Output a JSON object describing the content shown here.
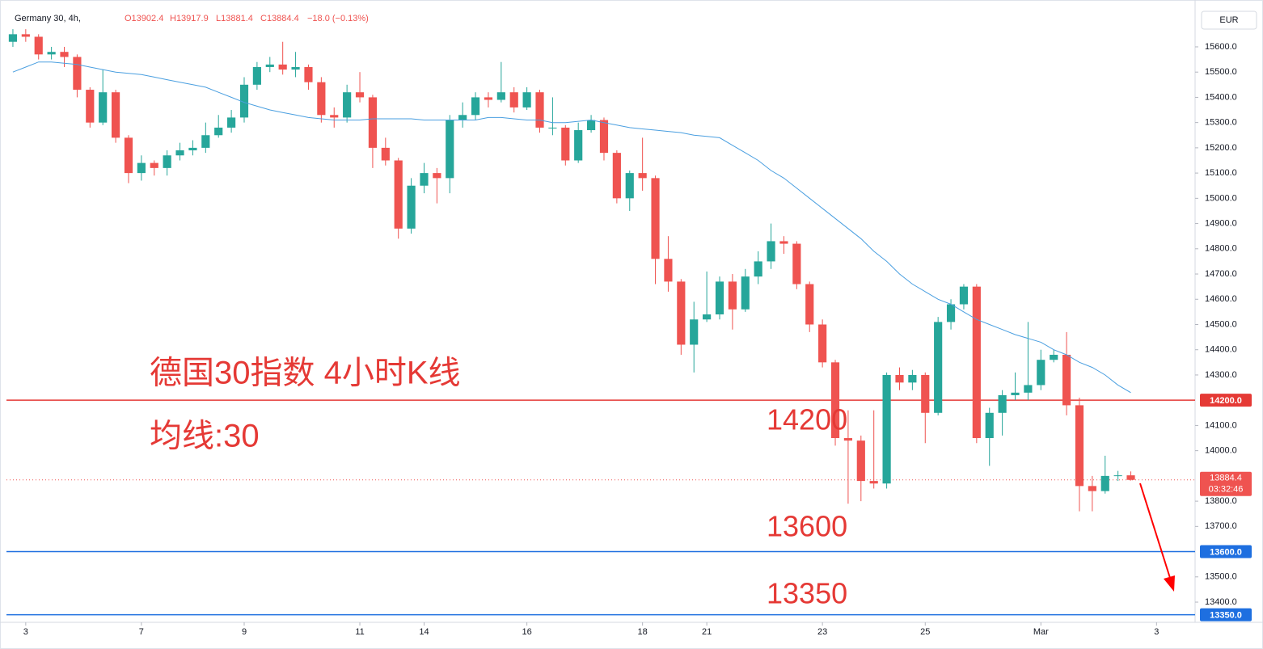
{
  "chart_data": {
    "type": "candlestick",
    "legend": {
      "symbol": "Germany 30, 4h,",
      "open": "O13902.4",
      "high": "H13917.9",
      "low": "L13881.4",
      "close": "C13884.4",
      "change": "−18.0 (−0.13%)"
    },
    "currency": "EUR",
    "annotations": [
      "德国30指数 4小时K线",
      "均线:30",
      "14200",
      "13600",
      "13350"
    ],
    "up_color": "#26a69a",
    "down_color": "#ef5350",
    "ma_color": "#4a9fe0",
    "open": [
      15620,
      15650,
      15640,
      15570,
      15580,
      15560,
      15430,
      15300,
      15420,
      15240,
      15100,
      15140,
      15120,
      15170,
      15190,
      15200,
      15250,
      15280,
      15320,
      15450,
      15520,
      15530,
      15510,
      15520,
      15460,
      15330,
      15320,
      15420,
      15400,
      15200,
      15150,
      14880,
      15050,
      15100,
      15080,
      15310,
      15330,
      15400,
      15390,
      15420,
      15360,
      15420,
      15280,
      15280,
      15150,
      15270,
      15310,
      15180,
      15000,
      15100,
      15080,
      14760,
      14670,
      14420,
      14520,
      14540,
      14670,
      14560,
      14690,
      14750,
      14830,
      14820,
      14660,
      14500,
      14350,
      14050,
      14040,
      13880,
      13870,
      14300,
      14270,
      14300,
      14150,
      14510,
      14580,
      14650,
      14050,
      14150,
      14220,
      14230,
      14260,
      14360,
      14380,
      14180,
      13860,
      13840,
      13900,
      13902.4
    ],
    "high": [
      15670,
      15670,
      15650,
      15600,
      15600,
      15570,
      15440,
      15510,
      15430,
      15250,
      15170,
      15150,
      15190,
      15220,
      15230,
      15300,
      15330,
      15350,
      15480,
      15540,
      15560,
      15620,
      15580,
      15530,
      15480,
      15360,
      15450,
      15500,
      15410,
      15240,
      15160,
      15080,
      15140,
      15120,
      15330,
      15380,
      15420,
      15420,
      15540,
      15440,
      15440,
      15430,
      15400,
      15290,
      15300,
      15330,
      15320,
      15190,
      15110,
      15240,
      15090,
      14850,
      14680,
      14590,
      14710,
      14690,
      14700,
      14720,
      14790,
      14900,
      14850,
      14830,
      14670,
      14520,
      14360,
      14160,
      14060,
      14160,
      14310,
      14330,
      14320,
      14310,
      14530,
      14600,
      14660,
      14660,
      14170,
      14240,
      14310,
      14510,
      14400,
      14400,
      14470,
      14210,
      13900,
      13980,
      13920,
      13917.9
    ],
    "low": [
      15600,
      15620,
      15550,
      15550,
      15520,
      15400,
      15280,
      15290,
      15220,
      15060,
      15070,
      15090,
      15090,
      15150,
      15170,
      15180,
      15240,
      15260,
      15300,
      15430,
      15500,
      15490,
      15480,
      15430,
      15300,
      15280,
      15300,
      15380,
      15120,
      15130,
      14840,
      14860,
      15020,
      14980,
      15020,
      15280,
      15310,
      15360,
      15380,
      15340,
      15350,
      15260,
      15250,
      15130,
      15140,
      15260,
      15150,
      14980,
      14950,
      15030,
      14660,
      14630,
      14380,
      14310,
      14510,
      14520,
      14480,
      14550,
      14660,
      14720,
      14780,
      14640,
      14470,
      14330,
      14020,
      13790,
      13800,
      13850,
      13850,
      14240,
      14240,
      14030,
      14140,
      14480,
      14560,
      14030,
      13940,
      14060,
      14200,
      14200,
      14240,
      14350,
      14140,
      13760,
      13760,
      13830,
      13880,
      13881.4
    ],
    "close": [
      15650,
      15640,
      15570,
      15580,
      15560,
      15430,
      15300,
      15420,
      15240,
      15100,
      15140,
      15120,
      15170,
      15190,
      15200,
      15250,
      15280,
      15320,
      15450,
      15520,
      15530,
      15510,
      15520,
      15460,
      15330,
      15320,
      15420,
      15400,
      15200,
      15150,
      14880,
      15050,
      15100,
      15080,
      15310,
      15330,
      15400,
      15390,
      15420,
      15360,
      15420,
      15280,
      15280,
      15150,
      15270,
      15310,
      15180,
      15000,
      15100,
      15080,
      14760,
      14670,
      14420,
      14520,
      14540,
      14670,
      14560,
      14690,
      14750,
      14830,
      14820,
      14660,
      14500,
      14350,
      14050,
      14040,
      13880,
      13870,
      14300,
      14270,
      14300,
      14150,
      14510,
      14580,
      14650,
      14050,
      14150,
      14220,
      14230,
      14260,
      14360,
      14380,
      14180,
      13860,
      13840,
      13900,
      13902.4,
      13884.4
    ],
    "ma": [
      15500,
      15520,
      15540,
      15540,
      15535,
      15530,
      15520,
      15510,
      15500,
      15495,
      15490,
      15480,
      15470,
      15460,
      15450,
      15440,
      15420,
      15400,
      15380,
      15365,
      15350,
      15340,
      15330,
      15320,
      15315,
      15310,
      15310,
      15310,
      15315,
      15315,
      15315,
      15315,
      15310,
      15310,
      15310,
      15310,
      15310,
      15320,
      15320,
      15315,
      15310,
      15310,
      15300,
      15300,
      15305,
      15310,
      15300,
      15290,
      15280,
      15275,
      15270,
      15265,
      15260,
      15250,
      15245,
      15240,
      15210,
      15180,
      15150,
      15110,
      15080,
      15040,
      15000,
      14960,
      14920,
      14880,
      14840,
      14790,
      14750,
      14700,
      14660,
      14630,
      14600,
      14580,
      14550,
      14520,
      14500,
      14480,
      14460,
      14445,
      14430,
      14400,
      14380,
      14350,
      14330,
      14300,
      14260,
      14230
    ],
    "levels": [
      {
        "value": 14200,
        "label": "14200.0",
        "color": "#e53935"
      },
      {
        "value": 13600,
        "label": "13600.0",
        "color": "#1e6fe0"
      },
      {
        "value": 13350,
        "label": "13350.0",
        "color": "#1e6fe0"
      }
    ],
    "last_price": {
      "value": 13884.4,
      "label": "13884.4",
      "timer": "03:32:46"
    },
    "xlim": [
      -0.5,
      92
    ],
    "ylim": [
      13320,
      15760
    ],
    "xticks": [
      {
        "value": 1,
        "label": "3"
      },
      {
        "value": 10,
        "label": "7"
      },
      {
        "value": 18,
        "label": "9"
      },
      {
        "value": 27,
        "label": "11"
      },
      {
        "value": 32,
        "label": "14"
      },
      {
        "value": 40,
        "label": "16"
      },
      {
        "value": 49,
        "label": "18"
      },
      {
        "value": 54,
        "label": "21"
      },
      {
        "value": 63,
        "label": "23"
      },
      {
        "value": 71,
        "label": "25"
      },
      {
        "value": 80,
        "label": "Mar"
      },
      {
        "value": 89,
        "label": "3"
      }
    ],
    "yticks": [
      {
        "value": 13400,
        "label": "13400.0"
      },
      {
        "value": 13500,
        "label": "13500.0"
      },
      {
        "value": 13700,
        "label": "13700.0"
      },
      {
        "value": 13800,
        "label": "13800.0"
      },
      {
        "value": 14000,
        "label": "14000.0"
      },
      {
        "value": 14100,
        "label": "14100.0"
      },
      {
        "value": 14300,
        "label": "14300.0"
      },
      {
        "value": 14400,
        "label": "14400.0"
      },
      {
        "value": 14500,
        "label": "14500.0"
      },
      {
        "value": 14600,
        "label": "14600.0"
      },
      {
        "value": 14700,
        "label": "14700.0"
      },
      {
        "value": 14800,
        "label": "14800.0"
      },
      {
        "value": 14900,
        "label": "14900.0"
      },
      {
        "value": 15000,
        "label": "15000.0"
      },
      {
        "value": 15100,
        "label": "15100.0"
      },
      {
        "value": 15200,
        "label": "15200.0"
      },
      {
        "value": 15300,
        "label": "15300.0"
      },
      {
        "value": 15400,
        "label": "15400.0"
      },
      {
        "value": 15500,
        "label": "15500.0"
      },
      {
        "value": 15600,
        "label": "15600.0"
      }
    ]
  }
}
